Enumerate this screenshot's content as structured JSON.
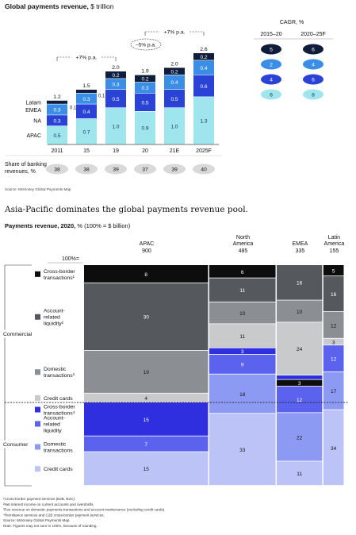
{
  "chart_data": [
    {
      "type": "bar",
      "stacked": true,
      "title": "Global payments revenue,",
      "title_unit": "$ trillion",
      "categories": [
        "2011",
        "15",
        "19",
        "20",
        "21E",
        "2025F"
      ],
      "totals": [
        "1.2",
        "1.5",
        "2.0",
        "1.9",
        "2.0",
        "2.6"
      ],
      "series": [
        {
          "name": "APAC",
          "color": "#9fe5ed",
          "values": [
            0.5,
            0.7,
            1.0,
            0.9,
            1.0,
            1.3
          ],
          "labels": [
            "0.5",
            "0.7",
            "1.0",
            "0.9",
            "1.0",
            "1.3"
          ]
        },
        {
          "name": "NA",
          "color": "#2a43d6",
          "values": [
            0.3,
            0.4,
            0.5,
            0.5,
            0.5,
            0.6
          ],
          "labels": [
            "0.3",
            "0.4",
            "0.5",
            "0.5",
            "0.5",
            "0.6"
          ]
        },
        {
          "name": "EMEA",
          "color": "#3a8ee6",
          "values": [
            0.3,
            0.3,
            0.3,
            0.3,
            0.4,
            0.4
          ],
          "labels": [
            "0.3",
            "0.3",
            "0.3",
            "0.3",
            "0.4",
            "0.4"
          ]
        },
        {
          "name": "Latam",
          "color": "#0f1c3a",
          "values": [
            0.1,
            0.1,
            0.2,
            0.2,
            0.2,
            0.2
          ],
          "labels": [
            "0.1",
            "0.1",
            "0.2",
            "0.2",
            "0.2",
            "0.2"
          ]
        }
      ],
      "side_labels": [
        "0.1",
        "0.1"
      ],
      "ylim": [
        0,
        2.6
      ],
      "annotations": {
        "bracket_left": "+7% p.a.",
        "bracket_right": "+7% p.a.",
        "covid_drop": "–5% p.a."
      },
      "cagr": {
        "header": "CAGR, %",
        "columns": [
          "2015–20",
          "2020–25F"
        ],
        "rows": [
          [
            "5",
            "6"
          ],
          [
            "2",
            "4"
          ],
          [
            "4",
            "6"
          ],
          [
            "6",
            "8"
          ]
        ]
      },
      "share": {
        "label_line1": "Share of banking",
        "label_line2": "revenues, %",
        "values": [
          "38",
          "38",
          "39",
          "37",
          "39",
          "40"
        ]
      },
      "source": "Source: McKinsey Global Payments Map"
    },
    {
      "type": "marimekko",
      "headline": "Asia-Pacific dominates the global payments revenue pool.",
      "title": "Payments revenue, 2020,",
      "title_unit": "% (100% = $ billion)",
      "hundred_label": "100%=",
      "columns": [
        {
          "name": "APAC",
          "name_lines": [
            "APAC"
          ],
          "total": "900",
          "total_value": 900,
          "segments": [
            8,
            30,
            19,
            4,
            15,
            7,
            15
          ]
        },
        {
          "name": "North America",
          "name_lines": [
            "North",
            "America"
          ],
          "total": "485",
          "total_value": 485,
          "segments": [
            6,
            11,
            10,
            11,
            3,
            9,
            18,
            33
          ]
        },
        {
          "name": "EMEA",
          "name_lines": [
            "EMEA"
          ],
          "total": "335",
          "total_value": 335,
          "segments": [
            16,
            10,
            24,
            2,
            3,
            12,
            22,
            11
          ]
        },
        {
          "name": "Latin America",
          "name_lines": [
            "Latin",
            "America"
          ],
          "total": "155",
          "total_value": 155,
          "segments": [
            5,
            16,
            12,
            3,
            12,
            17,
            34
          ]
        }
      ],
      "segment_labels": {
        "APAC": [
          "8",
          "30",
          "19",
          "4",
          "15",
          "7",
          "15"
        ],
        "North America": [
          "6",
          "11",
          "10",
          "11",
          "3",
          "9",
          "18",
          "33"
        ],
        "EMEA": [
          "16",
          "10",
          "24",
          "2",
          "3",
          "12",
          "22",
          "11"
        ],
        "Latin America": [
          "5",
          "16",
          "12",
          "3",
          "12",
          "17",
          "34"
        ]
      },
      "categories": [
        {
          "key": "cb_com",
          "lines": [
            "Cross-border",
            "transactions¹"
          ],
          "color": "#0d0d0d",
          "text": "#ffffff"
        },
        {
          "key": "acct",
          "lines": [
            "Account-",
            "related",
            "liquidity²"
          ],
          "color": "#55595d",
          "text": "#ffffff"
        },
        {
          "key": "dom_com",
          "lines": [
            "Domestic",
            "transactions³"
          ],
          "color": "#8b8f93",
          "text": "#111111"
        },
        {
          "key": "cc_com",
          "lines": [
            "Credit cards"
          ],
          "color": "#c8cacc",
          "text": "#111111"
        },
        {
          "key": "cb_con",
          "lines": [
            "Cross-border",
            "transactions⁴"
          ],
          "color": "#2f2fe0",
          "text": "#ffffff"
        },
        {
          "key": "acct_con",
          "lines": [
            "Account-",
            "related",
            "liquidity"
          ],
          "color": "#5b62ee",
          "text": "#ffffff"
        },
        {
          "key": "dom_con",
          "lines": [
            "Domestic",
            "transactions"
          ],
          "color": "#8d9af3",
          "text": "#111111"
        },
        {
          "key": "cc_con",
          "lines": [
            "Credit cards"
          ],
          "color": "#bcc4f7",
          "text": "#111111"
        }
      ],
      "column_categories": {
        "APAC": [
          "cb_com",
          "acct",
          "dom_com",
          "cc_com",
          "cb_con",
          "acct_con",
          "cc_con"
        ],
        "North America": [
          "cb_com",
          "acct",
          "dom_com",
          "cc_com",
          "cb_con",
          "acct_con",
          "dom_con",
          "cc_con"
        ],
        "EMEA": [
          "acct",
          "dom_com",
          "cc_com",
          "cb_con",
          "cb_com",
          "acct_con",
          "dom_con",
          "cc_con"
        ],
        "Latin America": [
          "cb_com",
          "acct",
          "dom_com",
          "cc_com",
          "acct_con",
          "dom_con",
          "cc_con"
        ]
      },
      "groups": [
        "Commercial",
        "Consumer"
      ],
      "footnotes": [
        "¹Cross-border payment services (B2B, B2C).",
        "²Net interest income on current accounts and overdrafts.",
        "³Fee revenue on domestic payments transactions and account maintenance (excluding credit cards).",
        "⁴Remittance services and C2B cross-border payment services.",
        "Source: McKinsey Global Payments Map",
        "Note: Figures may not sum to 100%, because of rounding."
      ]
    }
  ]
}
